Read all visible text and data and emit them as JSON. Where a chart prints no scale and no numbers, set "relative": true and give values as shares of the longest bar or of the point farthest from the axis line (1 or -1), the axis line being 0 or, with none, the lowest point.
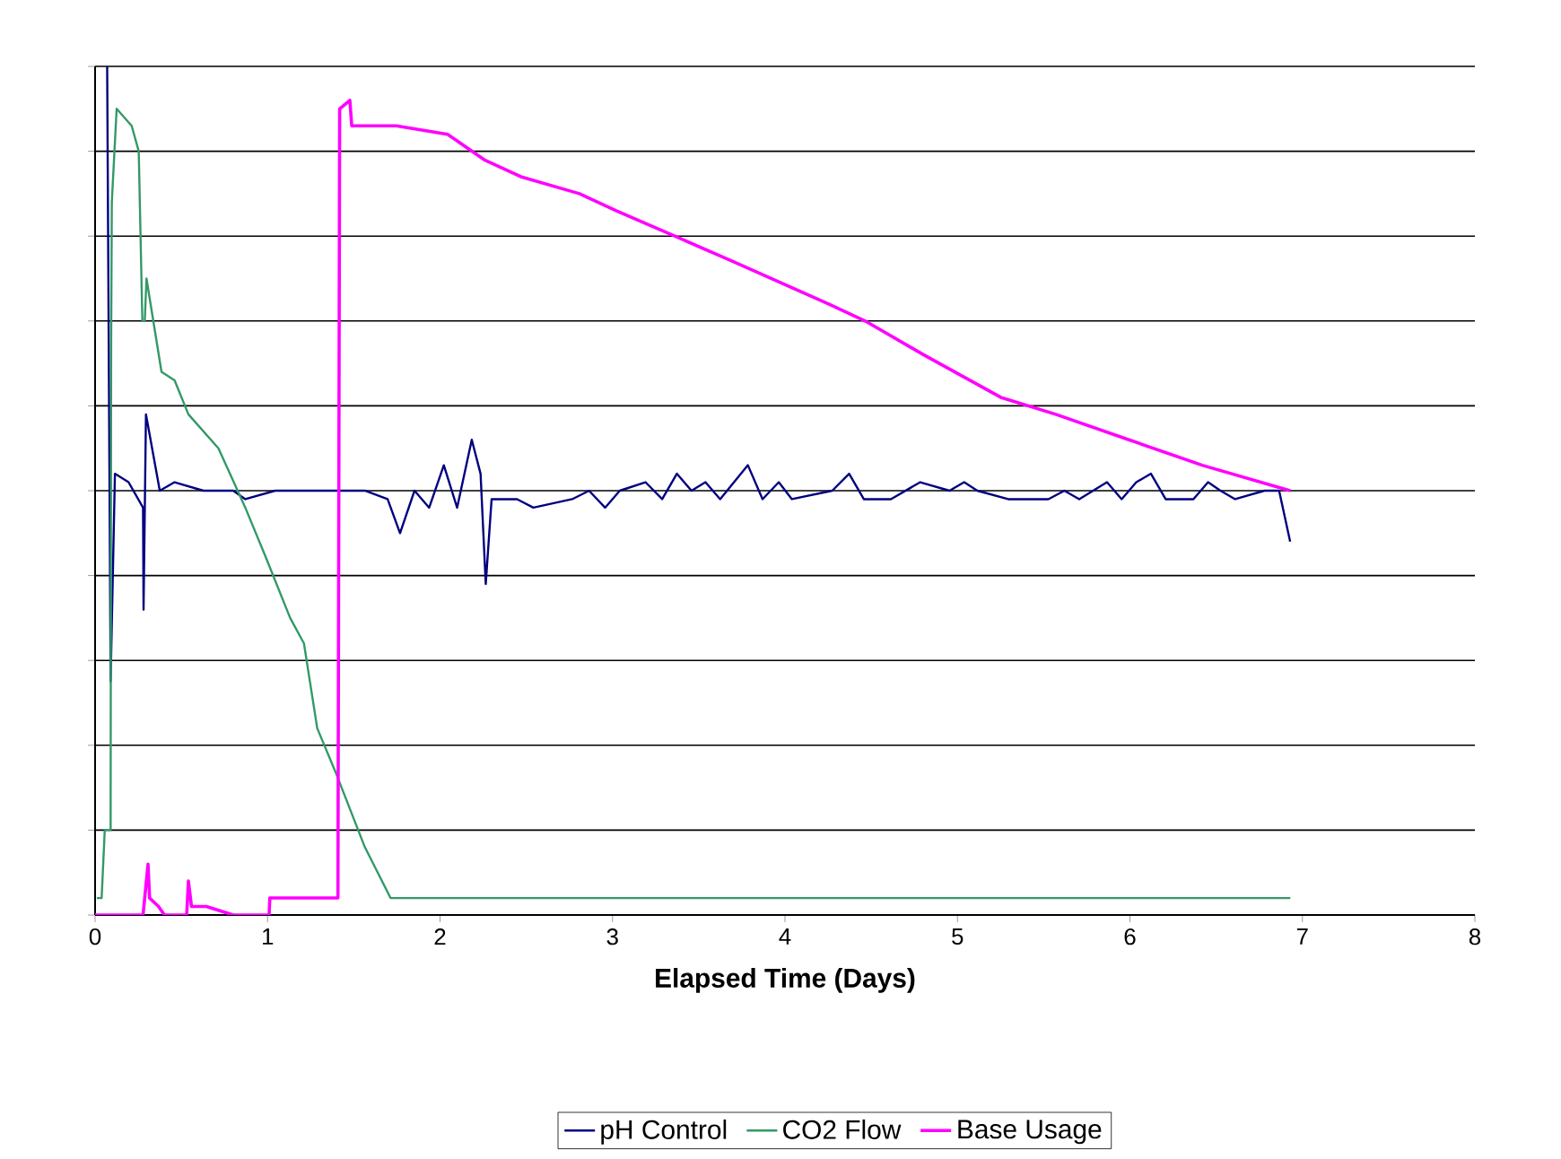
{
  "chart_data": {
    "type": "line",
    "xlabel": "Elapsed Time (Days)",
    "relative": true,
    "xlim": [
      0,
      8
    ],
    "xticks": [
      0,
      1,
      2,
      3,
      4,
      5,
      6,
      7,
      8
    ],
    "grid": "y",
    "legend": "bottom",
    "marker": "none",
    "line_style": "solid",
    "series": [
      {
        "name": "pH Control",
        "color": "#000080",
        "x": [
          0.07,
          0.09,
          0.115,
          0.194,
          0.278,
          0.281,
          0.295,
          0.375,
          0.461,
          0.628,
          0.801,
          0.871,
          1.044,
          1.374,
          1.453,
          1.564,
          1.696,
          1.768,
          1.852,
          1.937,
          2.022,
          2.099,
          2.184,
          2.235,
          2.265,
          2.299,
          2.447,
          2.541,
          2.766,
          2.864,
          2.957,
          3.042,
          3.191,
          3.288,
          3.373,
          3.458,
          3.539,
          3.624,
          3.785,
          3.87,
          3.964,
          4.04,
          4.274,
          4.372,
          4.457,
          4.614,
          4.784,
          4.954,
          5.039,
          5.115,
          5.294,
          5.527,
          5.62,
          5.706,
          5.867,
          5.952,
          6.037,
          6.122,
          6.207,
          6.368,
          6.453,
          6.525,
          6.61,
          6.78,
          6.865,
          6.929
        ],
        "values": [
          1.0,
          0.275,
          0.52,
          0.51,
          0.48,
          0.36,
          0.59,
          0.5,
          0.51,
          0.5,
          0.5,
          0.49,
          0.5,
          0.5,
          0.5,
          0.5,
          0.49,
          0.45,
          0.5,
          0.48,
          0.53,
          0.48,
          0.56,
          0.52,
          0.39,
          0.49,
          0.49,
          0.48,
          0.49,
          0.5,
          0.48,
          0.5,
          0.51,
          0.49,
          0.52,
          0.5,
          0.51,
          0.49,
          0.53,
          0.49,
          0.51,
          0.49,
          0.5,
          0.52,
          0.49,
          0.49,
          0.51,
          0.5,
          0.51,
          0.5,
          0.49,
          0.49,
          0.5,
          0.49,
          0.51,
          0.49,
          0.51,
          0.52,
          0.49,
          0.49,
          0.51,
          0.5,
          0.49,
          0.5,
          0.5,
          0.44
        ]
      },
      {
        "name": "CO2 Flow",
        "color": "#339966",
        "x": [
          0.01,
          0.038,
          0.056,
          0.09,
          0.093,
          0.097,
          0.125,
          0.212,
          0.253,
          0.274,
          0.288,
          0.298,
          0.385,
          0.461,
          0.541,
          0.715,
          0.871,
          0.993,
          1.131,
          1.211,
          1.288,
          1.391,
          1.564,
          1.713,
          2.015,
          2.57,
          3.5,
          4.5,
          5.5,
          6.2,
          6.93
        ],
        "values": [
          0.02,
          0.02,
          0.1,
          0.1,
          0.67,
          0.84,
          0.95,
          0.93,
          0.9,
          0.7,
          0.7,
          0.75,
          0.64,
          0.63,
          0.59,
          0.55,
          0.48,
          0.42,
          0.35,
          0.32,
          0.22,
          0.17,
          0.08,
          0.02,
          0.02,
          0.02,
          0.02,
          0.02,
          0.02,
          0.02,
          0.02
        ]
      },
      {
        "name": "Base Usage",
        "color": "#ff00ff",
        "x": [
          0.0,
          0.278,
          0.307,
          0.316,
          0.368,
          0.402,
          0.531,
          0.541,
          0.559,
          0.645,
          0.801,
          1.009,
          1.013,
          1.408,
          1.418,
          1.477,
          1.488,
          1.746,
          2.044,
          2.256,
          2.468,
          2.808,
          3.021,
          3.361,
          3.7,
          4.253,
          4.465,
          4.805,
          5.251,
          5.57,
          5.994,
          6.419,
          6.929
        ],
        "values": [
          0.0,
          0.0,
          0.06,
          0.02,
          0.01,
          0.0,
          0.0,
          0.04,
          0.01,
          0.01,
          0.0,
          0.0,
          0.02,
          0.02,
          0.95,
          0.96,
          0.93,
          0.93,
          0.92,
          0.89,
          0.87,
          0.85,
          0.83,
          0.8,
          0.77,
          0.72,
          0.7,
          0.66,
          0.61,
          0.59,
          0.56,
          0.53,
          0.5
        ]
      }
    ]
  }
}
